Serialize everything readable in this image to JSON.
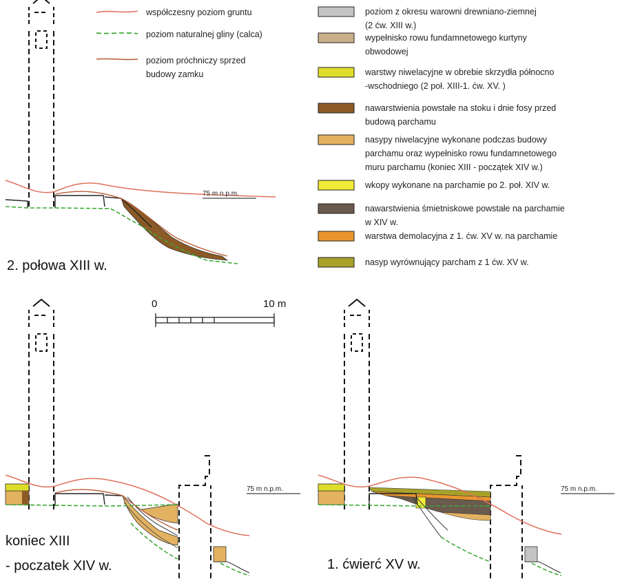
{
  "line_legend": [
    {
      "id": "modern",
      "lines": [
        "współczesny poziom gruntu"
      ],
      "color": "#e0705a",
      "style": "solid"
    },
    {
      "id": "clay",
      "lines": [
        "poziom naturalnej gliny (calca)"
      ],
      "color": "#3daa35",
      "style": "dashed"
    },
    {
      "id": "humus",
      "lines": [
        "poziom próchniczy sprzed",
        "budowy zamku"
      ],
      "color": "#b8562f",
      "style": "solid"
    }
  ],
  "fill_legend": [
    {
      "id": "l1",
      "color": "#c4c4c4",
      "lines": [
        "poziom z okresu warowni drewniano-ziemnej",
        "(2 ćw. XIII w.)"
      ]
    },
    {
      "id": "l2",
      "color": "#c9b08b",
      "lines": [
        "wypełnisko rowu fundamnetowego kurtyny",
        "obwodowej"
      ]
    },
    {
      "id": "l3",
      "color": "#dede2a",
      "lines": [
        "warstwy niwelacyjne w obrebie skrzydła północno",
        "-wschodniego (2 poł. XIII-1. ćw. XV. )"
      ]
    },
    {
      "id": "l4",
      "color": "#8b5a26",
      "lines": [
        "nawarstwienia powstałe na stoku i dnie fosy przed",
        "budową parchamu"
      ]
    },
    {
      "id": "l5",
      "color": "#e3b260",
      "lines": [
        "nasypy niwelacyjne wykonane podczas budowy",
        "parchamu oraz wypełnisko rowu fundamnetowego",
        "muru parchamu (koniec XIII - początek XIV w.)"
      ]
    },
    {
      "id": "l6",
      "color": "#f2ea38",
      "lines": [
        "wkopy wykonane na parchamie po 2. poł. XIV w."
      ]
    },
    {
      "id": "l7",
      "color": "#6b5a4e",
      "lines": [
        "nawarstwienia śmietniskowe powstałe na parchamie",
        "w XIV w."
      ]
    },
    {
      "id": "l8",
      "color": "#e8952e",
      "lines": [
        "warstwa demolacyjna z 1. ćw. XV w. na parchamie"
      ]
    },
    {
      "id": "l9",
      "color": "#a8a22a",
      "lines": [
        "nasyp wyrównujący parcham z 1 ćw. XV w."
      ]
    }
  ],
  "scale_bar": {
    "label_start": "0",
    "label_end": "10 m"
  },
  "panels": [
    {
      "id": "p1",
      "caption": [
        "2. połowa XIII w."
      ],
      "level_label": "75 m n.p.m."
    },
    {
      "id": "p2",
      "caption": [
        "koniec XIII",
        "- poczatek XIV w."
      ],
      "level_label": "75 m n.p.m."
    },
    {
      "id": "p3",
      "caption": [
        "1. ćwierć XV w."
      ],
      "level_label": "75 m n.p.m."
    }
  ]
}
